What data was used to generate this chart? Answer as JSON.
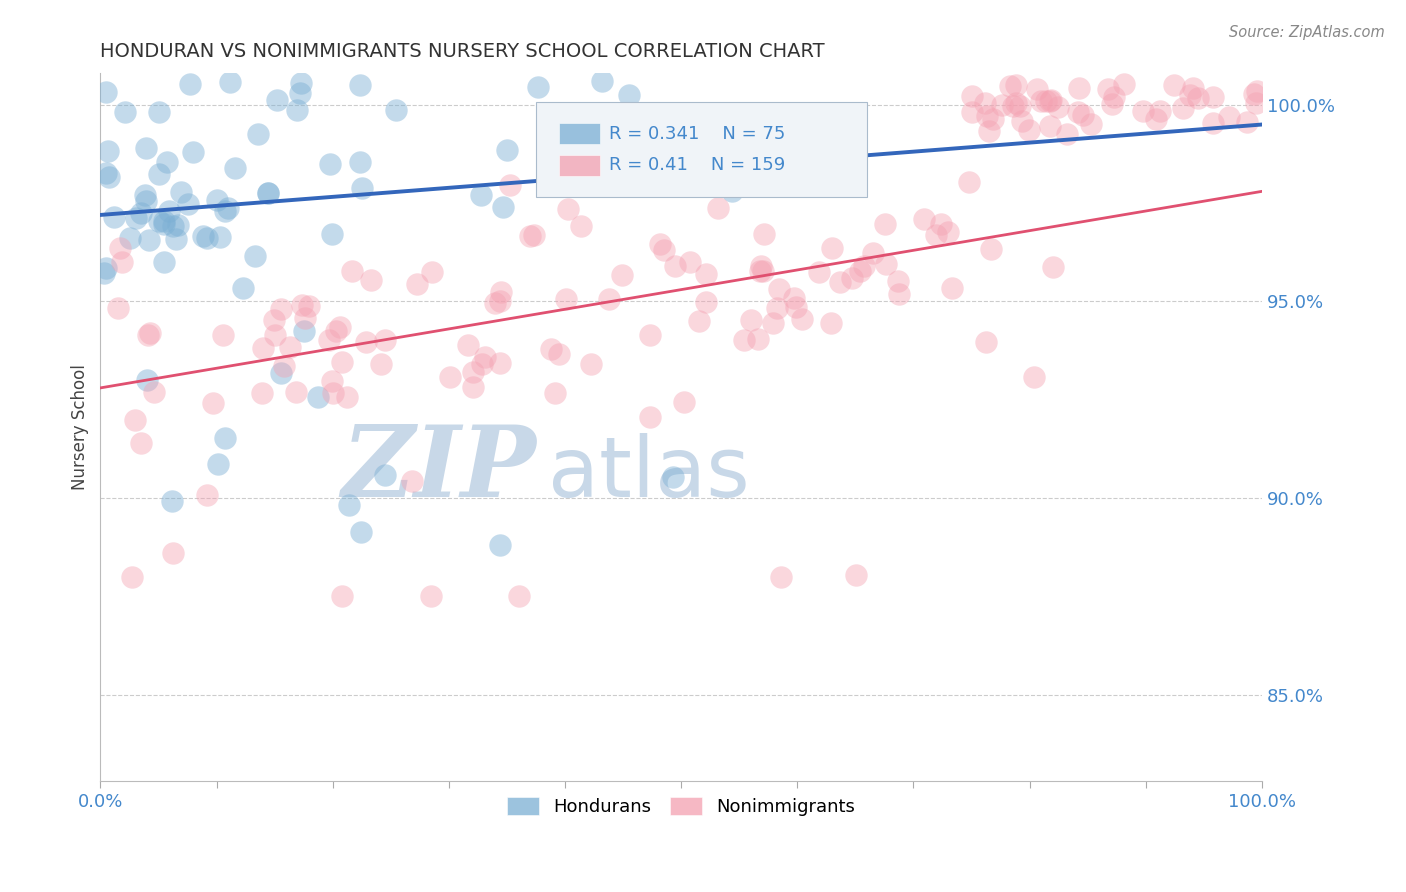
{
  "title": "HONDURAN VS NONIMMIGRANTS NURSERY SCHOOL CORRELATION CHART",
  "source": "Source: ZipAtlas.com",
  "ylabel": "Nursery School",
  "xlim": [
    0.0,
    1.0
  ],
  "ylim": [
    0.828,
    1.008
  ],
  "yticks": [
    0.85,
    0.9,
    0.95,
    1.0
  ],
  "ytick_labels": [
    "85.0%",
    "90.0%",
    "95.0%",
    "100.0%"
  ],
  "xticks": [
    0.0,
    1.0
  ],
  "xtick_labels": [
    "0.0%",
    "100.0%"
  ],
  "blue_R": 0.341,
  "blue_N": 75,
  "pink_R": 0.41,
  "pink_N": 159,
  "blue_color": "#7BAFD4",
  "pink_color": "#F4A0B0",
  "blue_line_color": "#3366BB",
  "pink_line_color": "#E05070",
  "watermark_zip_color": "#C8D8E8",
  "watermark_atlas_color": "#C8D8E8",
  "legend_label_blue": "Hondurans",
  "legend_label_pink": "Nonimmigrants",
  "background_color": "#FFFFFF",
  "grid_color": "#CCCCCC",
  "label_color": "#4488CC",
  "title_color": "#333333",
  "tick_label_color": "#4488CC"
}
